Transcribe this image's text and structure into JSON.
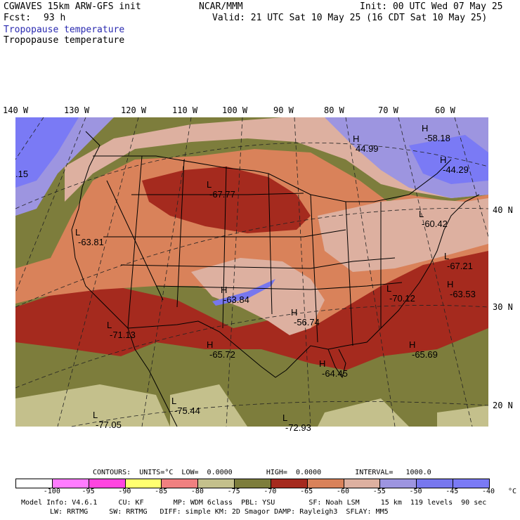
{
  "header": {
    "model_line": "CGWAVES 15km ARW-GFS init",
    "fcst_label": "Fcst:",
    "fcst_value": "93 h",
    "org": "NCAR/MMM",
    "init": "Init: 00 UTC Wed 07 May 25",
    "valid": "Valid: 21 UTC Sat 10 May 25 (16 CDT Sat 10 May 25)",
    "field_blue": "Tropopause temperature",
    "field_black": "Tropopause temperature"
  },
  "axes": {
    "longitude_labels": [
      "140 W",
      "130 W",
      "120 W",
      "110 W",
      "100 W",
      "90 W",
      "80 W",
      "70 W",
      "60 W"
    ],
    "latitude_labels": [
      "40 N",
      "30 N",
      "20 N"
    ]
  },
  "map_labels": [
    {
      "mark": "H",
      "value": "44.99"
    },
    {
      "mark": "H",
      "value": "-58.18"
    },
    {
      "mark": "H",
      "value": "-44.29"
    },
    {
      "mark": "L",
      "value": "-67.77"
    },
    {
      "mark": "",
      "value": ".15"
    },
    {
      "mark": "L",
      "value": "-63.81"
    },
    {
      "mark": "L",
      "value": "-60.42"
    },
    {
      "mark": "L",
      "value": "-67.21"
    },
    {
      "mark": "H",
      "value": "-63.84"
    },
    {
      "mark": "L",
      "value": "-70.12"
    },
    {
      "mark": "H",
      "value": "-63.53"
    },
    {
      "mark": "H",
      "value": "-56.74"
    },
    {
      "mark": "L",
      "value": "-71.13"
    },
    {
      "mark": "H",
      "value": "-65.72"
    },
    {
      "mark": "H",
      "value": "-64.45"
    },
    {
      "mark": "H",
      "value": "-65.69"
    },
    {
      "mark": "L",
      "value": "-75.44"
    },
    {
      "mark": "L",
      "value": "-77.05"
    },
    {
      "mark": "L",
      "value": "-72.93"
    }
  ],
  "contours": {
    "line": "CONTOURS:  UNITS=°C  LOW=  0.0000        HIGH=  0.0000        INTERVAL=   1000.0"
  },
  "colorbar": {
    "labels": [
      "-100",
      "-95",
      "-90",
      "-85",
      "-80",
      "-75",
      "-70",
      "-65",
      "-60",
      "-55",
      "-50",
      "-45",
      "-40",
      "°C"
    ],
    "colors": [
      "#ffffff",
      "#ff7cff",
      "#ff45e0",
      "#ffff70",
      "#f08080",
      "#c4c08c",
      "#7d7d3c",
      "#a52a1e",
      "#d9825a",
      "#ddb0a0",
      "#9d95e0",
      "#7777ee",
      "#7a7af5"
    ]
  },
  "footer": {
    "line1": "Model Info: V4.6.1     CU: KF       MP: WDM 6class  PBL: YSU        SF: Noah LSM     15 km  119 levels  90 sec",
    "line2": "LW: RRTMG     SW: RRTMG   DIFF: simple KM: 2D Smagor DAMP: Rayleigh3  SFLAY: MM5"
  }
}
